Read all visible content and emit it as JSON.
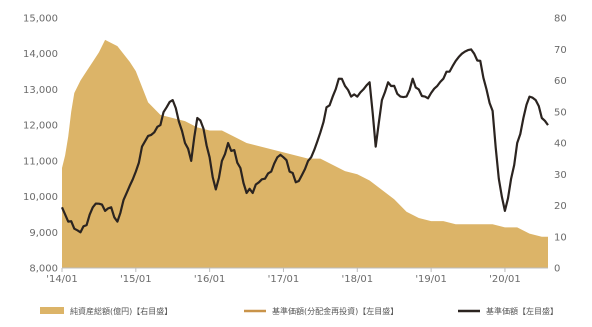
{
  "chart_data": {
    "type": "area",
    "title": "",
    "xlabel": "",
    "ylabel_left": "",
    "ylabel_right": "",
    "x_ticks": [
      "'14/01",
      "'15/01",
      "'16/01",
      "'17/01",
      "'18/01",
      "'19/01",
      "'20/01"
    ],
    "y_left": {
      "min": 8000,
      "max": 15000,
      "ticks": [
        "8,000",
        "9,000",
        "10,000",
        "11,000",
        "12,000",
        "13,000",
        "14,000",
        "15,000"
      ]
    },
    "y_right": {
      "min": 0,
      "max": 80,
      "ticks": [
        "0",
        "10",
        "20",
        "30",
        "40",
        "50",
        "60",
        "70",
        "80"
      ]
    },
    "grid": false,
    "legend_position": "bottom",
    "colors": {
      "area": "#dcb468",
      "dist_line": "#c9944a",
      "nav_line": "#2b2420"
    },
    "series": [
      {
        "name": "純資産総額(億円)【右目盛】",
        "kind": "area",
        "axis": "right",
        "x": [
          0,
          0.5,
          1,
          1.5,
          2,
          3,
          4,
          5,
          6,
          7,
          9,
          11,
          12,
          14,
          16,
          18,
          20,
          22,
          24,
          26,
          28,
          30,
          32,
          34,
          36,
          38,
          40,
          42,
          44,
          46,
          48,
          50,
          52,
          54,
          56,
          58,
          60,
          62,
          64,
          66,
          68,
          70,
          72,
          74,
          76,
          78,
          79
        ],
        "values": [
          32,
          36,
          42,
          50,
          56,
          60,
          63,
          66,
          69,
          73,
          71,
          66,
          63,
          53,
          49,
          48,
          47,
          45,
          44,
          44,
          42,
          40,
          39,
          38,
          37,
          36,
          35,
          35,
          33,
          31,
          30,
          28,
          25,
          22,
          18,
          16,
          15,
          15,
          14,
          14,
          14,
          14,
          13,
          13,
          11,
          10,
          10
        ]
      },
      {
        "name": "基準価額(分配金再投資)【左目盛】",
        "kind": "line",
        "axis": "left",
        "x": [],
        "values": []
      },
      {
        "name": "基準価額【左目盛】",
        "kind": "line",
        "axis": "left",
        "x": [
          0,
          1,
          2,
          3,
          4,
          5,
          6,
          7,
          8,
          9,
          10,
          11,
          12,
          13,
          14,
          15,
          16,
          17,
          18,
          19,
          20,
          21,
          22,
          23,
          24,
          25,
          26,
          27,
          28,
          29,
          30,
          31,
          32,
          33,
          34,
          35,
          36,
          37,
          38,
          39,
          40,
          41,
          42,
          43,
          44,
          45,
          46,
          47,
          48,
          49,
          50,
          51,
          52,
          53,
          54,
          55,
          56,
          57,
          58,
          59,
          60,
          61,
          62,
          63,
          64,
          65,
          66,
          67,
          68,
          69,
          70,
          71,
          72,
          73,
          74,
          75,
          76,
          77,
          78,
          79
        ],
        "values": [
          9700,
          9300,
          9100,
          9000,
          9200,
          9700,
          9800,
          9600,
          9700,
          9300,
          9900,
          10300,
          10700,
          11400,
          11700,
          11800,
          12000,
          12500,
          12700,
          12100,
          11500,
          11000,
          12200,
          11900,
          11100,
          10200,
          11000,
          11500,
          11300,
          10800,
          10100,
          10100,
          10400,
          10500,
          10700,
          11100,
          11100,
          10700,
          10400,
          10600,
          11000,
          11300,
          11800,
          12500,
          12800,
          13300,
          13100,
          12800,
          12800,
          13000,
          13200,
          11400,
          12700,
          13200,
          13100,
          12800,
          12800,
          13300,
          13000,
          12800,
          12900,
          13100,
          13300,
          13500,
          13800,
          14000,
          14100,
          14000,
          13800,
          13000,
          12400,
          10500,
          9600,
          10500,
          11500,
          12200,
          12800,
          12700,
          12200,
          12000
        ]
      }
    ]
  }
}
